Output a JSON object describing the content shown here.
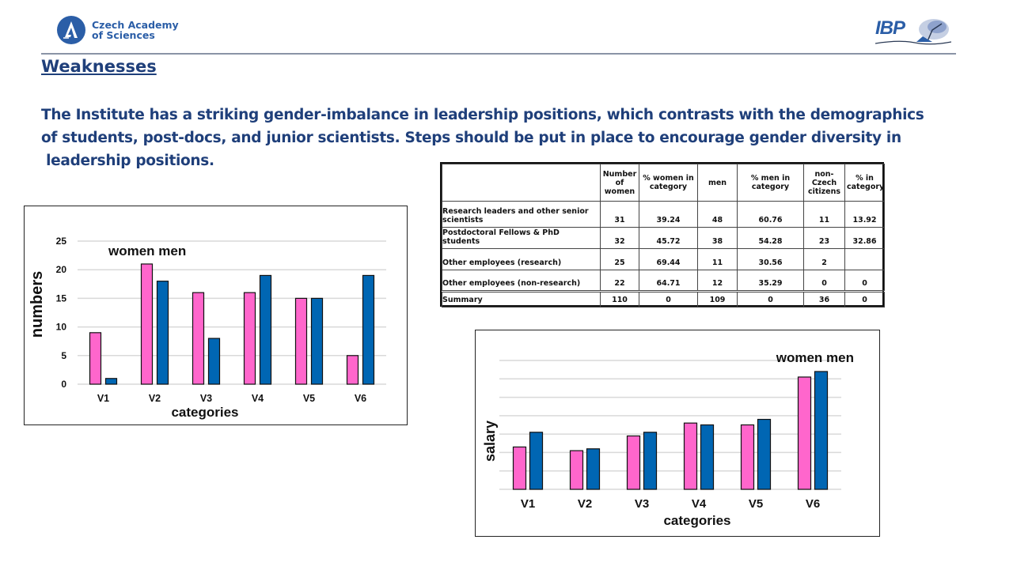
{
  "header": {
    "org_name_line1": "Czech Academy",
    "org_name_line2": "of Sciences",
    "institute_logo_text": "IBP"
  },
  "heading": "Weaknesses",
  "paragraph_lines": [
    "The Institute has a striking gender-imbalance in leadership positions, which contrasts with the demographics",
    "of students, post-docs, and junior scientists. Steps should be put in place to encourage gender diversity in",
    " leadership positions."
  ],
  "colors": {
    "heading_text": "#1f3f7a",
    "women_bar": "#ff66cc",
    "men_bar": "#0066b3",
    "gridline": "#d9d9d9"
  },
  "table": {
    "headers": [
      "",
      "Number of women",
      "% women in category",
      "men",
      "% men in category",
      "non-Czech citizens",
      "% in category"
    ],
    "rows": [
      {
        "label": "Research leaders and other senior scientists",
        "values": [
          "31",
          "39.24",
          "48",
          "60.76",
          "11",
          "13.92"
        ]
      },
      {
        "label": "Postdoctoral Fellows & PhD students",
        "values": [
          "32",
          "45.72",
          "38",
          "54.28",
          "23",
          "32.86"
        ]
      },
      {
        "label": "Other employees (research)",
        "values": [
          "25",
          "69.44",
          "11",
          "30.56",
          "2",
          ""
        ]
      },
      {
        "label": "Other employees (non-research)",
        "values": [
          "22",
          "64.71",
          "12",
          "35.29",
          "0",
          "0"
        ]
      }
    ],
    "summary": {
      "label": "Summary",
      "values": [
        "110",
        "0",
        "109",
        "0",
        "36",
        "0"
      ]
    }
  },
  "chart_data": [
    {
      "type": "bar",
      "title": "",
      "legend_text": "women men",
      "legend_position": "top-left",
      "xlabel": "categories",
      "ylabel": "numbers",
      "categories": [
        "V1",
        "V2",
        "V3",
        "V4",
        "V5",
        "V6"
      ],
      "series": [
        {
          "name": "women",
          "values": [
            9,
            21,
            16,
            16,
            15,
            5
          ]
        },
        {
          "name": "men",
          "values": [
            1,
            18,
            8,
            19,
            15,
            19
          ]
        }
      ],
      "ylim": [
        0,
        25
      ],
      "yticks": [
        0,
        5,
        10,
        15,
        20,
        25
      ],
      "grid": true
    },
    {
      "type": "bar",
      "title": "",
      "legend_text": "women men",
      "legend_position": "top-right",
      "xlabel": "categories",
      "ylabel": "salary",
      "categories": [
        "V1",
        "V2",
        "V3",
        "V4",
        "V5",
        "V6"
      ],
      "series": [
        {
          "name": "women",
          "values": [
            2.3,
            2.1,
            2.9,
            3.6,
            3.5,
            6.1
          ]
        },
        {
          "name": "men",
          "values": [
            3.1,
            2.2,
            3.1,
            3.5,
            3.8,
            6.4
          ]
        }
      ],
      "ylim": [
        0,
        7
      ],
      "yticks": [],
      "y_units": "gridline intervals (no numeric tick labels shown)",
      "grid": true
    }
  ]
}
